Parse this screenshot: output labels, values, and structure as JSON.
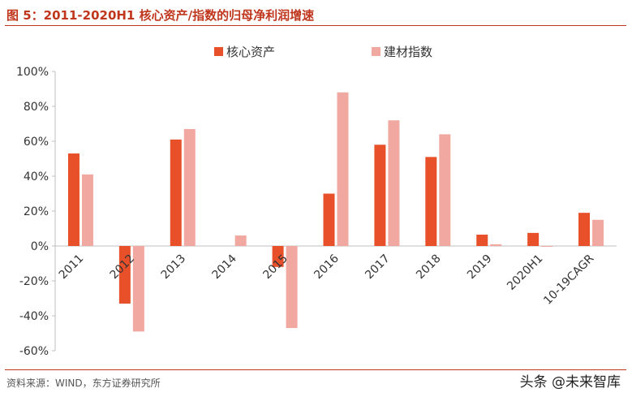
{
  "figure": {
    "title": "图 5：2011-2020H1 核心资产/指数的归母净利润增速",
    "source": "资料来源：WIND，东方证券研究所",
    "watermark": "头条 @未来智库"
  },
  "colors": {
    "core": "#e8502a",
    "index": "#f0a8a0",
    "accent": "#c0361d",
    "axis": "#bfbfbf"
  },
  "chart_data": {
    "type": "bar",
    "categories": [
      "2011",
      "2012",
      "2013",
      "2014",
      "2015",
      "2016",
      "2017",
      "2018",
      "2019",
      "2020H1",
      "10-19CAGR"
    ],
    "series": [
      {
        "name": "核心资产",
        "values": [
          53,
          -33,
          61,
          0,
          -12,
          30,
          58,
          51,
          6.5,
          7.5,
          19
        ]
      },
      {
        "name": "建材指数",
        "values": [
          41,
          -49,
          67,
          6,
          -47,
          88,
          72,
          64,
          1,
          -0.5,
          15
        ]
      }
    ],
    "ylim": [
      -60,
      100
    ],
    "yticks": [
      "-60%",
      "-40%",
      "-20%",
      "0%",
      "20%",
      "40%",
      "60%",
      "80%",
      "100%"
    ],
    "ytick_values": [
      -60,
      -40,
      -20,
      0,
      20,
      40,
      60,
      80,
      100
    ],
    "legend_position": "top",
    "grid": false
  }
}
